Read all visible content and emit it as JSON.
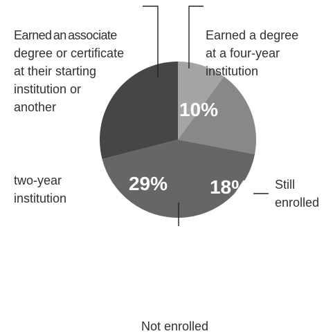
{
  "chart_data": {
    "type": "pie",
    "slices": [
      {
        "label": "Earned a degree at a four-year institution",
        "value": 10,
        "color": "#a4a4a4"
      },
      {
        "label": "Still enrolled",
        "value": 18,
        "color": "#888888"
      },
      {
        "label": "Not enrolled",
        "value": 43,
        "color": "#666666"
      },
      {
        "label": "Earned an associate degree or certificate at their starting institution or another two-year institution",
        "value": 29,
        "color": "#464646"
      }
    ],
    "data_labels": [
      {
        "slice": 0,
        "text": "10%"
      },
      {
        "slice": 1,
        "text": "18%"
      },
      {
        "slice": 3,
        "text": "29%"
      }
    ]
  },
  "labels": {
    "associate": [
      "Earned an associate",
      "degree or certificate",
      "at their starting",
      "institution or",
      "another"
    ],
    "two_year": [
      "two-year",
      "institution"
    ],
    "four_year": [
      "Earned a degree",
      "at a four-year",
      "institution"
    ],
    "still_enrolled": [
      "Still",
      "enrolled"
    ],
    "not_enrolled": "Not enrolled"
  }
}
